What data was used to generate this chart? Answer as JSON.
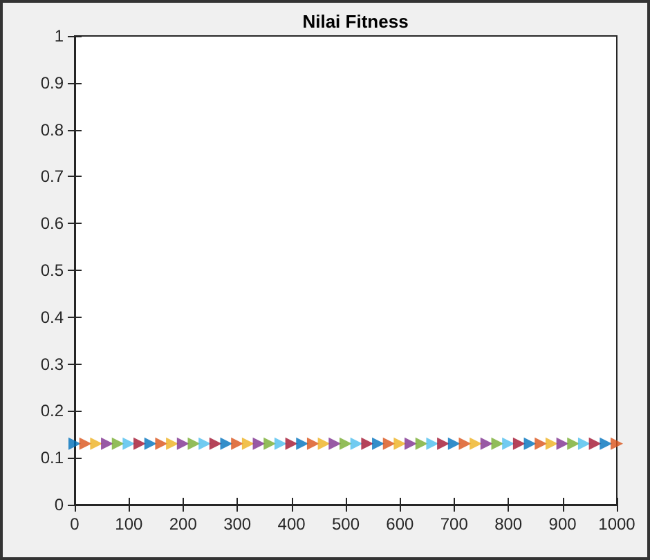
{
  "chart_data": {
    "type": "scatter",
    "title": "Nilai Fitness",
    "marker": "triangle",
    "x": [
      0,
      20,
      40,
      60,
      80,
      100,
      120,
      140,
      160,
      180,
      200,
      220,
      240,
      260,
      280,
      300,
      320,
      340,
      360,
      380,
      400,
      420,
      440,
      460,
      480,
      500,
      520,
      540,
      560,
      580,
      600,
      620,
      640,
      660,
      680,
      700,
      720,
      740,
      760,
      780,
      800,
      820,
      840,
      860,
      880,
      900,
      920,
      940,
      960,
      980,
      1000
    ],
    "values": [
      0.13,
      0.13,
      0.13,
      0.13,
      0.13,
      0.13,
      0.13,
      0.13,
      0.13,
      0.13,
      0.13,
      0.13,
      0.13,
      0.13,
      0.13,
      0.13,
      0.13,
      0.13,
      0.13,
      0.13,
      0.13,
      0.13,
      0.13,
      0.13,
      0.13,
      0.13,
      0.13,
      0.13,
      0.13,
      0.13,
      0.13,
      0.13,
      0.13,
      0.13,
      0.13,
      0.13,
      0.13,
      0.13,
      0.13,
      0.13,
      0.13,
      0.13,
      0.13,
      0.13,
      0.13,
      0.13,
      0.13,
      0.13,
      0.13,
      0.13,
      0.13
    ],
    "colors": [
      "#0072bd",
      "#d95319",
      "#edb120",
      "#7e2f8e",
      "#77ac30",
      "#4dbeee",
      "#a2142f",
      "#0072bd",
      "#d95319",
      "#edb120",
      "#7e2f8e",
      "#77ac30",
      "#4dbeee",
      "#a2142f",
      "#0072bd",
      "#d95319",
      "#edb120",
      "#7e2f8e",
      "#77ac30",
      "#4dbeee",
      "#a2142f",
      "#0072bd",
      "#d95319",
      "#edb120",
      "#7e2f8e",
      "#77ac30",
      "#4dbeee",
      "#a2142f",
      "#0072bd",
      "#d95319",
      "#edb120",
      "#7e2f8e",
      "#77ac30",
      "#4dbeee",
      "#a2142f",
      "#0072bd",
      "#d95319",
      "#edb120",
      "#7e2f8e",
      "#77ac30",
      "#4dbeee",
      "#a2142f",
      "#0072bd",
      "#d95319",
      "#edb120",
      "#7e2f8e",
      "#77ac30",
      "#4dbeee",
      "#a2142f",
      "#0072bd",
      "#d95319"
    ],
    "xlim": [
      0,
      1000
    ],
    "xticks": [
      0,
      100,
      200,
      300,
      400,
      500,
      600,
      700,
      800,
      900,
      1000
    ],
    "ylim": [
      0,
      1
    ],
    "yticks": [
      0,
      0.1,
      0.2,
      0.3,
      0.4,
      0.5,
      0.6,
      0.7,
      0.8,
      0.9,
      1
    ]
  }
}
